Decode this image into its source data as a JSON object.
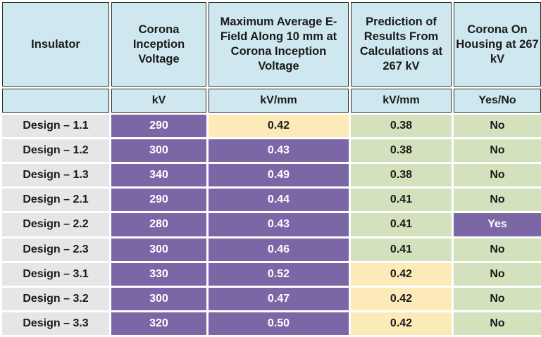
{
  "headers": {
    "insulator": "Insulator",
    "corona_inception_voltage": "Corona Inception Voltage",
    "max_avg_efield": "Maximum Average E-Field Along 10 mm at Corona Inception Voltage",
    "prediction": "Prediction of Results From Calculations at 267 kV",
    "corona_on_housing": "Corona On Housing at 267 kV"
  },
  "units": {
    "insulator": "",
    "voltage": "kV",
    "efield": "kV/mm",
    "prediction": "kV/mm",
    "corona": "Yes/No"
  },
  "colors": {
    "header_bg": "#cfe8ef",
    "purple": "#7b66a6",
    "yellow": "#fcebb9",
    "green": "#d3e2bd",
    "gray": "#e6e6e6"
  },
  "rows": [
    {
      "insulator": "Design – 1.1",
      "voltage": "290",
      "efield": "0.42",
      "efield_color": "yellow",
      "prediction": "0.38",
      "prediction_color": "green",
      "corona": "No",
      "corona_color": "green"
    },
    {
      "insulator": "Design – 1.2",
      "voltage": "300",
      "efield": "0.43",
      "efield_color": "purple",
      "prediction": "0.38",
      "prediction_color": "green",
      "corona": "No",
      "corona_color": "green"
    },
    {
      "insulator": "Design – 1.3",
      "voltage": "340",
      "efield": "0.49",
      "efield_color": "purple",
      "prediction": "0.38",
      "prediction_color": "green",
      "corona": "No",
      "corona_color": "green"
    },
    {
      "insulator": "Design – 2.1",
      "voltage": "290",
      "efield": "0.44",
      "efield_color": "purple",
      "prediction": "0.41",
      "prediction_color": "green",
      "corona": "No",
      "corona_color": "green"
    },
    {
      "insulator": "Design – 2.2",
      "voltage": "280",
      "efield": "0.43",
      "efield_color": "purple",
      "prediction": "0.41",
      "prediction_color": "green",
      "corona": "Yes",
      "corona_color": "purple"
    },
    {
      "insulator": "Design – 2.3",
      "voltage": "300",
      "efield": "0.46",
      "efield_color": "purple",
      "prediction": "0.41",
      "prediction_color": "green",
      "corona": "No",
      "corona_color": "green"
    },
    {
      "insulator": "Design – 3.1",
      "voltage": "330",
      "efield": "0.52",
      "efield_color": "purple",
      "prediction": "0.42",
      "prediction_color": "yellow",
      "corona": "No",
      "corona_color": "green"
    },
    {
      "insulator": "Design – 3.2",
      "voltage": "300",
      "efield": "0.47",
      "efield_color": "purple",
      "prediction": "0.42",
      "prediction_color": "yellow",
      "corona": "No",
      "corona_color": "green"
    },
    {
      "insulator": "Design – 3.3",
      "voltage": "320",
      "efield": "0.50",
      "efield_color": "purple",
      "prediction": "0.42",
      "prediction_color": "yellow",
      "corona": "No",
      "corona_color": "green"
    }
  ]
}
